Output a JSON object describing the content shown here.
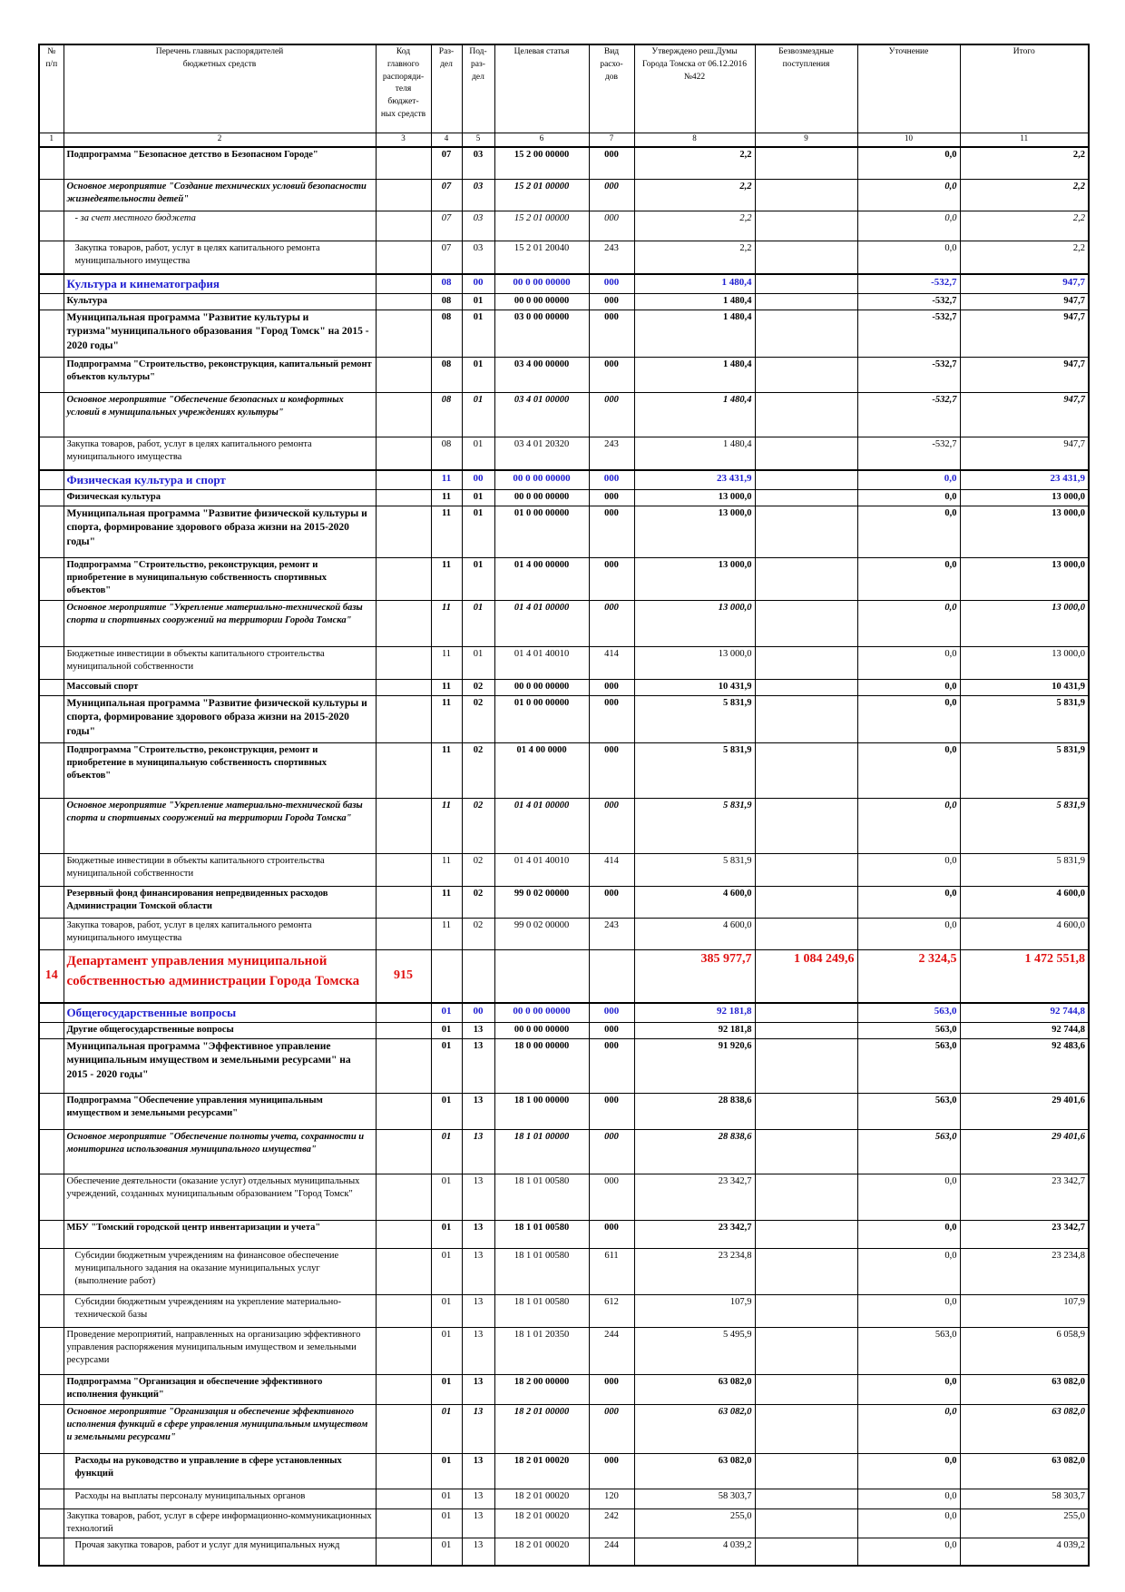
{
  "table": {
    "header": [
      [
        "№",
        "п/п"
      ],
      [
        "Перечень главных распорядителей",
        "бюджетных средств"
      ],
      [
        "Код",
        "главного",
        "распоряди-",
        "теля бюджет-",
        "ных средств"
      ],
      [
        "Раз-",
        "дел"
      ],
      [
        "Под-",
        "раз-",
        "дел"
      ],
      [
        "Целевая статья"
      ],
      [
        "Вид расхо-",
        "дов"
      ],
      [
        "Утверждено реш.Думы",
        "Города Томска от 06.12.2016",
        "№422"
      ],
      [
        "Безвозмездные",
        "поступления"
      ],
      [
        "Уточнение"
      ],
      [
        "Итого"
      ]
    ],
    "numbers": [
      1,
      2,
      3,
      4,
      5,
      6,
      7,
      8,
      9,
      10,
      11
    ],
    "rows": [
      {
        "name": "Подпрограмма \"Безопасное детство в Безопасном Городе\"",
        "rz": "07",
        "pr": "03",
        "cs": "15 2 00 00000",
        "vr": "000",
        "approved": "2,2",
        "change": "0,0",
        "total": "2,2"
      },
      {
        "name": "Основное мероприятие  \"Создание технических условий безопасности жизнедеятельности детей\"",
        "rz": "07",
        "pr": "03",
        "cs": "15 2 01 00000",
        "vr": "000",
        "approved": "2,2",
        "change": "0,0",
        "total": "2,2"
      },
      {
        "name": "- за счет местного бюджета",
        "rz": "07",
        "pr": "03",
        "cs": "15 2 01 00000",
        "vr": "000",
        "approved": "2,2",
        "change": "0,0",
        "total": "2,2"
      },
      {
        "name": "Закупка товаров, работ, услуг в целях капитального ремонта муниципального имущества",
        "rz": "07",
        "pr": "03",
        "cs": "15 2 01 20040",
        "vr": "243",
        "approved": "2,2",
        "change": "0,0",
        "total": "2,2"
      },
      {
        "name": "Культура и кинематография",
        "rz": "08",
        "pr": "00",
        "cs": "00 0 00 00000",
        "vr": "000",
        "approved": "1 480,4",
        "change": "-532,7",
        "total": "947,7"
      },
      {
        "name": "Культура",
        "rz": "08",
        "pr": "01",
        "cs": "00 0 00 00000",
        "vr": "000",
        "approved": "1 480,4",
        "change": "-532,7",
        "total": "947,7"
      },
      {
        "name": "Муниципальная программа \"Развитие культуры и туризма\"муниципального образования \"Город Томск\" на 2015 - 2020 годы\"",
        "rz": "08",
        "pr": "01",
        "cs": "03 0 00 00000",
        "vr": "000",
        "approved": "1 480,4",
        "change": "-532,7",
        "total": "947,7"
      },
      {
        "name": "Подпрограмма \"Строительство, реконструкция, капитальный ремонт объектов культуры\"",
        "rz": "08",
        "pr": "01",
        "cs": "03 4 00 00000",
        "vr": "000",
        "approved": "1 480,4",
        "change": "-532,7",
        "total": "947,7"
      },
      {
        "name": "Основное мероприятие \"Обеспечение безопасных и комфортных условий в муниципальных учреждениях культуры\"",
        "rz": "08",
        "pr": "01",
        "cs": "03 4 01 00000",
        "vr": "000",
        "approved": "1 480,4",
        "change": "-532,7",
        "total": "947,7"
      },
      {
        "name": "Закупка товаров, работ, услуг в целях капитального ремонта муниципального имущества",
        "rz": "08",
        "pr": "01",
        "cs": "03 4 01 20320",
        "vr": "243",
        "approved": "1 480,4",
        "change": "-532,7",
        "total": "947,7"
      },
      {
        "name": "Физическая культура и спорт",
        "rz": "11",
        "pr": "00",
        "cs": "00 0 00 00000",
        "vr": "000",
        "approved": "23 431,9",
        "change": "0,0",
        "total": "23 431,9"
      },
      {
        "name": "Физическая культура",
        "rz": "11",
        "pr": "01",
        "cs": "00 0 00 00000",
        "vr": "000",
        "approved": "13 000,0",
        "change": "0,0",
        "total": "13 000,0"
      },
      {
        "name": "Муниципальная программа \"Развитие физической культуры и спорта, формирование здорового образа жизни на 2015-2020 годы\"",
        "rz": "11",
        "pr": "01",
        "cs": "01 0 00 00000",
        "vr": "000",
        "approved": "13 000,0",
        "change": "0,0",
        "total": "13 000,0"
      },
      {
        "name": "Подпрограмма \"Строительство, реконструкция, ремонт и приобретение в муниципальную собственность спортивных объектов\"",
        "rz": "11",
        "pr": "01",
        "cs": "01 4 00 00000",
        "vr": "000",
        "approved": "13 000,0",
        "change": "0,0",
        "total": "13 000,0"
      },
      {
        "name": "Основное мероприятие \"Укрепление материально-технической базы спорта и спортивных сооружений на территории Города Томска\"",
        "rz": "11",
        "pr": "01",
        "cs": "01 4 01 00000",
        "vr": "000",
        "approved": "13 000,0",
        "change": "0,0",
        "total": "13 000,0"
      },
      {
        "name": "Бюджетные инвестиции в объекты капитального строительства муниципальной собственности",
        "rz": "11",
        "pr": "01",
        "cs": "01 4 01 40010",
        "vr": "414",
        "approved": "13 000,0",
        "change": "0,0",
        "total": "13 000,0"
      },
      {
        "name": "Массовый спорт",
        "rz": "11",
        "pr": "02",
        "cs": "00 0 00 00000",
        "vr": "000",
        "approved": "10 431,9",
        "change": "0,0",
        "total": "10 431,9"
      },
      {
        "name": "Муниципальная программа \"Развитие физической культуры и спорта, формирование здорового образа жизни на 2015-2020 годы\"",
        "rz": "11",
        "pr": "02",
        "cs": "01 0 00 00000",
        "vr": "000",
        "approved": "5 831,9",
        "change": "0,0",
        "total": "5 831,9"
      },
      {
        "name": "Подпрограмма \"Строительство, реконструкция, ремонт и приобретение в муниципальную собственность спортивных объектов\"",
        "rz": "11",
        "pr": "02",
        "cs": "01 4 00 0000",
        "vr": "000",
        "approved": "5 831,9",
        "change": "0,0",
        "total": "5 831,9"
      },
      {
        "name": "Основное мероприятие \"Укрепление материально-технической базы спорта и спортивных сооружений на территории Города Томска\"",
        "rz": "11",
        "pr": "02",
        "cs": "01 4 01 00000",
        "vr": "000",
        "approved": "5 831,9",
        "change": "0,0",
        "total": "5 831,9"
      },
      {
        "name": "Бюджетные инвестиции в объекты капитального строительства муниципальной собственности",
        "rz": "11",
        "pr": "02",
        "cs": "01 4 01 40010",
        "vr": "414",
        "approved": "5 831,9",
        "change": "0,0",
        "total": "5 831,9"
      },
      {
        "name": "Резервный фонд финансирования непредвиденных расходов Администрации Томской области",
        "rz": "11",
        "pr": "02",
        "cs": "99 0 02 00000",
        "vr": "000",
        "approved": "4 600,0",
        "change": "0,0",
        "total": "4 600,0"
      },
      {
        "name": "Закупка товаров, работ, услуг в целях капитального ремонта муниципального имущества",
        "rz": "11",
        "pr": "02",
        "cs": "99 0 02 00000",
        "vr": "243",
        "approved": "4 600,0",
        "change": "0,0",
        "total": "4 600,0"
      },
      {
        "num": "14",
        "name": "Департамент управления муниципальной собственностью администрации Города Томска",
        "code": "915",
        "approved": "385 977,7",
        "free": "1 084 249,6",
        "change": "2 324,5",
        "total": "1 472 551,8"
      },
      {
        "name": "Общегосударственные вопросы",
        "rz": "01",
        "pr": "00",
        "cs": "00 0 00 00000",
        "vr": "000",
        "approved": "92 181,8",
        "change": "563,0",
        "total": "92 744,8"
      },
      {
        "name": "Другие общегосударственные вопросы",
        "rz": "01",
        "pr": "13",
        "cs": "00 0 00 00000",
        "vr": "000",
        "approved": "92 181,8",
        "change": "563,0",
        "total": "92 744,8"
      },
      {
        "name": "Муниципальная программа \"Эффективное управление муниципальным имуществом и земельными ресурсами\" на 2015 - 2020 годы\"",
        "rz": "01",
        "pr": "13",
        "cs": "18 0 00 00000",
        "vr": "000",
        "approved": "91 920,6",
        "change": "563,0",
        "total": "92 483,6"
      },
      {
        "name": "Подпрограмма \"Обеспечение управления муниципальным имуществом и земельными ресурсами\"",
        "rz": "01",
        "pr": "13",
        "cs": "18 1 00 00000",
        "vr": "000",
        "approved": "28 838,6",
        "change": "563,0",
        "total": "29 401,6"
      },
      {
        "name": "Основное мероприятие \"Обеспечение полноты учета, сохранности и мониторинга использования муниципального имущества\"",
        "rz": "01",
        "pr": "13",
        "cs": "18 1 01 00000",
        "vr": "000",
        "approved": "28 838,6",
        "change": "563,0",
        "total": "29 401,6"
      },
      {
        "name": "Обеспечение деятельности (оказание услуг) отдельных муниципальных учреждений, созданных муниципальным образованием \"Город Томск\"",
        "rz": "01",
        "pr": "13",
        "cs": "18 1 01 00580",
        "vr": "000",
        "approved": "23 342,7",
        "change": "0,0",
        "total": "23 342,7"
      },
      {
        "name": "МБУ \"Томский городской центр инвентаризации и учета\"",
        "rz": "01",
        "pr": "13",
        "cs": "18 1 01 00580",
        "vr": "000",
        "approved": "23 342,7",
        "change": "0,0",
        "total": "23 342,7"
      },
      {
        "name": "Субсидии бюджетным учреждениям на финансовое обеспечение муниципального задания на оказание муниципальных услуг (выполнение работ)",
        "rz": "01",
        "pr": "13",
        "cs": "18 1 01 00580",
        "vr": "611",
        "approved": "23 234,8",
        "change": "0,0",
        "total": "23 234,8"
      },
      {
        "name": "Субсидии бюджетным учреждениям на укрепление материально-технической базы",
        "rz": "01",
        "pr": "13",
        "cs": "18 1 01 00580",
        "vr": "612",
        "approved": "107,9",
        "change": "0,0",
        "total": "107,9"
      },
      {
        "name": "Проведение мероприятий, направленных на организацию эффективного управления распоряжения муниципальным имуществом и земельными ресурсами",
        "rz": "01",
        "pr": "13",
        "cs": "18 1 01 20350",
        "vr": "244",
        "approved": "5 495,9",
        "change": "563,0",
        "total": "6 058,9"
      },
      {
        "name": "Подпрограмма \"Организация и обеспечение эффективного исполнения функций\"",
        "rz": "01",
        "pr": "13",
        "cs": "18 2 00 00000",
        "vr": "000",
        "approved": "63 082,0",
        "change": "0,0",
        "total": "63 082,0"
      },
      {
        "name": "Основное мероприятие \"Организация и обеспечение эффективного исполнения функций в сфере управления муниципальным имуществом и земельными ресурсами\"",
        "rz": "01",
        "pr": "13",
        "cs": "18 2 01 00000",
        "vr": "000",
        "approved": "63 082,0",
        "change": "0,0",
        "total": "63 082,0"
      },
      {
        "name": "Расходы на руководство и управление в сфере установленных функций",
        "rz": "01",
        "pr": "13",
        "cs": "18 2 01 00020",
        "vr": "000",
        "approved": "63 082,0",
        "change": "0,0",
        "total": "63 082,0"
      },
      {
        "name": "Расходы на выплаты персоналу муниципальных органов",
        "rz": "01",
        "pr": "13",
        "cs": "18 2 01 00020",
        "vr": "120",
        "approved": "58 303,7",
        "change": "0,0",
        "total": "58 303,7"
      },
      {
        "name": "Закупка товаров, работ, услуг в сфере информационно-коммуникационных технологий",
        "rz": "01",
        "pr": "13",
        "cs": "18 2 01 00020",
        "vr": "242",
        "approved": "255,0",
        "change": "0,0",
        "total": "255,0"
      },
      {
        "name": "Прочая закупка товаров, работ и услуг для муниципальных нужд",
        "rz": "01",
        "pr": "13",
        "cs": "18 2 01 00020",
        "vr": "244",
        "approved": "4 039,2",
        "change": "0,0",
        "total": "4 039,2"
      }
    ]
  }
}
